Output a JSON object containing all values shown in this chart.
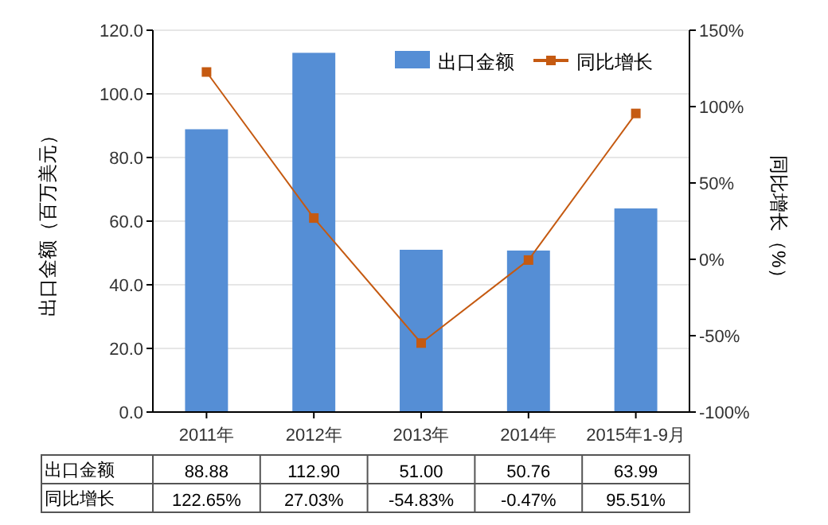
{
  "chart_data": {
    "type": "bar",
    "xlabel": null,
    "ylabel": "出口金额（百万美元）",
    "y2label": "同比增长（%）",
    "categories": [
      "2011年",
      "2012年",
      "2013年",
      "2014年",
      "2015年1-9月"
    ],
    "series": [
      {
        "name": "出口金额",
        "color": "#558ed5",
        "values": [
          88.88,
          112.9,
          51.0,
          50.76,
          63.99
        ],
        "value_labels": [
          "88.88",
          "112.90",
          "51.00",
          "50.76",
          "63.99"
        ]
      },
      {
        "name": "同比增长",
        "type": "line",
        "axis": "y2",
        "color": "#c55a11",
        "marker": "square",
        "values": [
          122.65,
          27.03,
          -54.83,
          -0.47,
          95.51
        ],
        "value_labels": [
          "122.65%",
          "27.03%",
          "-54.83%",
          "-0.47%",
          "95.51%"
        ]
      }
    ],
    "ylim": [
      0,
      120
    ],
    "yticks": [
      {
        "value": 0,
        "label": "0.0"
      },
      {
        "value": 20,
        "label": "20.0"
      },
      {
        "value": 40,
        "label": "40.0"
      },
      {
        "value": 60,
        "label": "60.0"
      },
      {
        "value": 80,
        "label": "80.0"
      },
      {
        "value": 100,
        "label": "100.0"
      },
      {
        "value": 120,
        "label": "120.0"
      }
    ],
    "y2lim": [
      -100,
      150
    ],
    "y2ticks": [
      {
        "value": -100,
        "label": "-100%"
      },
      {
        "value": -50,
        "label": "-50%"
      },
      {
        "value": 0,
        "label": "0%"
      },
      {
        "value": 50,
        "label": "50%"
      },
      {
        "value": 100,
        "label": "100%"
      },
      {
        "value": 150,
        "label": "150%"
      }
    ],
    "grid": "y",
    "legend": "top right"
  }
}
